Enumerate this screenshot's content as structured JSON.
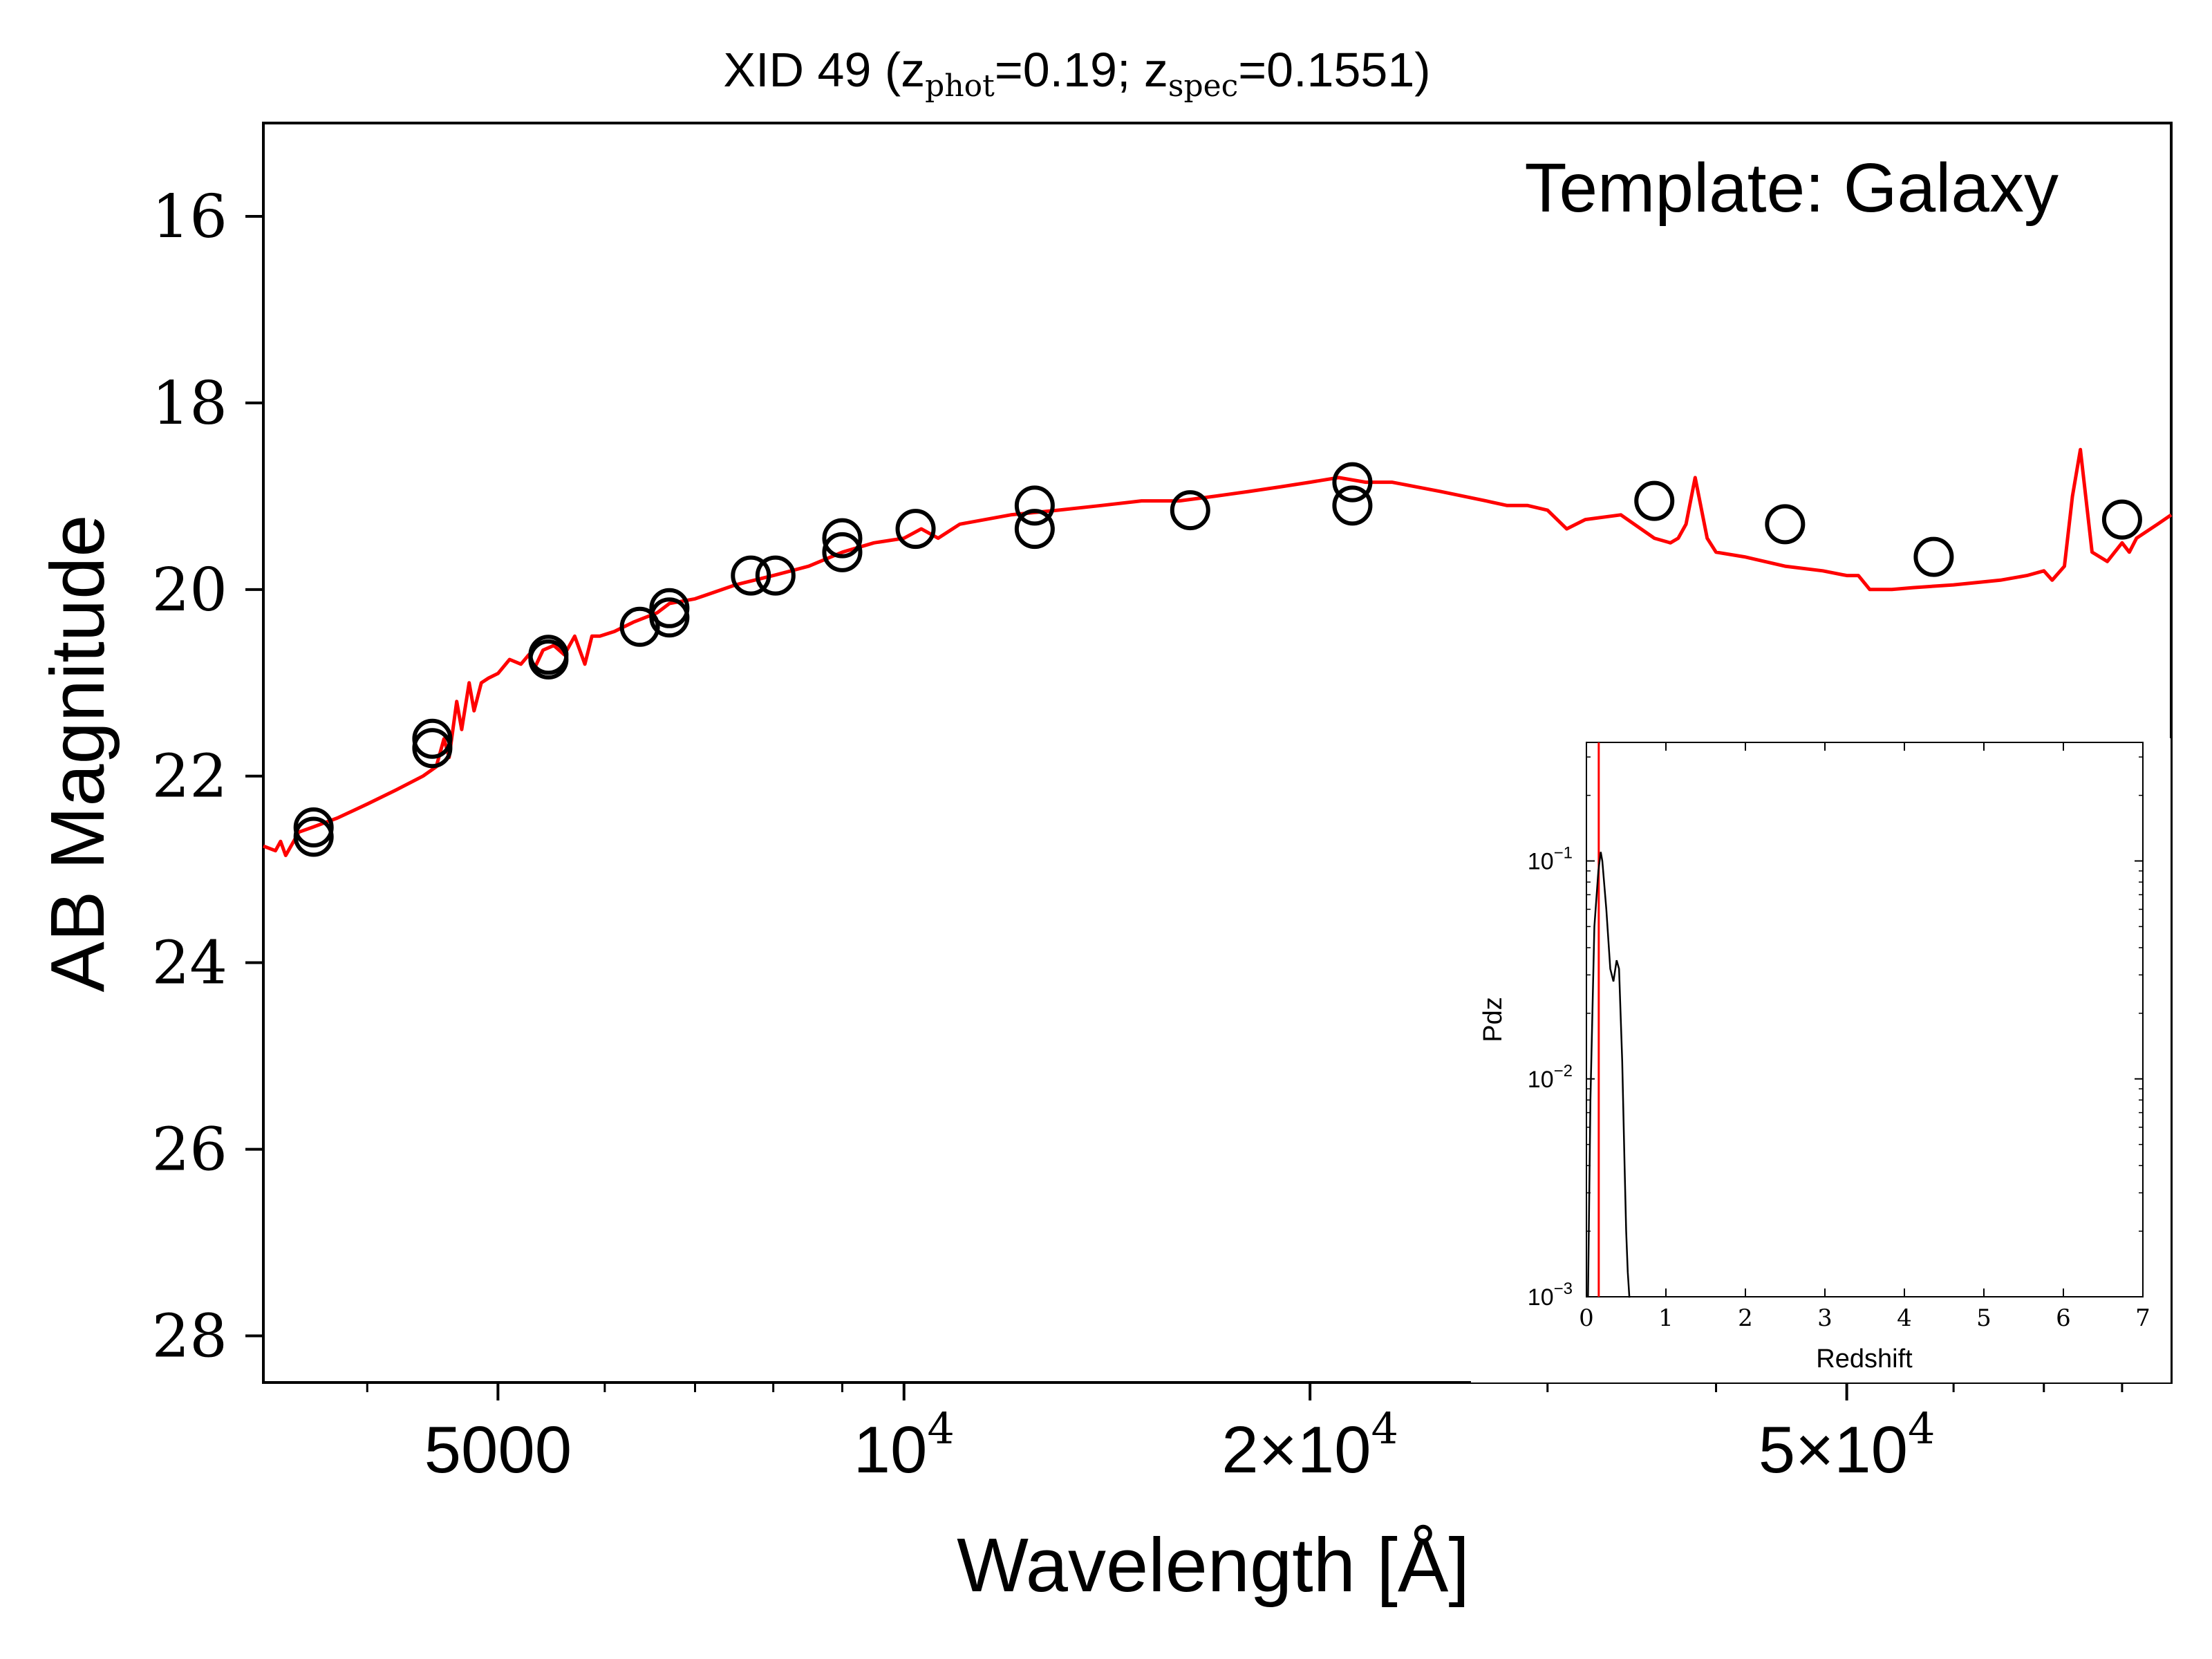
{
  "chart_data": [
    {
      "type": "scatter",
      "title_parts": {
        "pre": "XID 49 (z",
        "sub1": "phot",
        "mid": "=0.19; z",
        "sub2": "spec",
        "post": "=0.1551)"
      },
      "annotation": "Template: Galaxy",
      "xlabel": "Wavelength [Å]",
      "ylabel": "AB Magnitude",
      "xscale": "log",
      "yinverted": true,
      "xlim": [
        3350,
        87000
      ],
      "ylim": [
        28.5,
        15.0
      ],
      "yticks": [
        {
          "value": 16,
          "label": "16"
        },
        {
          "value": 18,
          "label": "18"
        },
        {
          "value": 20,
          "label": "20"
        },
        {
          "value": 22,
          "label": "22"
        },
        {
          "value": 24,
          "label": "24"
        },
        {
          "value": 26,
          "label": "26"
        },
        {
          "value": 28,
          "label": "28"
        }
      ],
      "xticks_major": [
        {
          "value": 5000,
          "label": "5000",
          "exp": ""
        },
        {
          "value": 10000,
          "label": "10",
          "exp": "4"
        },
        {
          "value": 20000,
          "label": "2×10",
          "exp": "4"
        },
        {
          "value": 50000,
          "label": "5×10",
          "exp": "4"
        }
      ],
      "xticks_minor": [
        4000,
        6000,
        7000,
        8000,
        9000,
        30000,
        40000,
        60000,
        70000,
        80000
      ],
      "series": [
        {
          "kind": "observed",
          "color": "#000000",
          "points": [
            {
              "x": 3650,
              "y": 22.55
            },
            {
              "x": 3650,
              "y": 22.65
            },
            {
              "x": 4470,
              "y": 21.6
            },
            {
              "x": 4470,
              "y": 21.7
            },
            {
              "x": 5450,
              "y": 20.7
            },
            {
              "x": 5450,
              "y": 20.75
            },
            {
              "x": 6370,
              "y": 20.4
            },
            {
              "x": 6700,
              "y": 20.2
            },
            {
              "x": 6700,
              "y": 20.3
            },
            {
              "x": 7700,
              "y": 19.85
            },
            {
              "x": 8030,
              "y": 19.85
            },
            {
              "x": 9000,
              "y": 19.45
            },
            {
              "x": 9000,
              "y": 19.6
            },
            {
              "x": 10200,
              "y": 19.35
            },
            {
              "x": 12500,
              "y": 19.1
            },
            {
              "x": 12500,
              "y": 19.35
            },
            {
              "x": 16300,
              "y": 19.15
            },
            {
              "x": 21500,
              "y": 18.85
            },
            {
              "x": 21500,
              "y": 19.1
            },
            {
              "x": 36000,
              "y": 19.05
            },
            {
              "x": 45000,
              "y": 19.3
            },
            {
              "x": 58000,
              "y": 19.65
            },
            {
              "x": 80000,
              "y": 19.25
            }
          ]
        },
        {
          "kind": "template",
          "color": "#ff0000",
          "x": [
            3350,
            3420,
            3450,
            3480,
            3560,
            3640,
            3800,
            4000,
            4200,
            4400,
            4500,
            4560,
            4600,
            4660,
            4700,
            4760,
            4800,
            4860,
            4920,
            5000,
            5100,
            5200,
            5270,
            5320,
            5400,
            5500,
            5600,
            5700,
            5800,
            5870,
            5950,
            6100,
            6300,
            6560,
            6700,
            7000,
            7500,
            8000,
            8500,
            9000,
            9500,
            10000,
            10300,
            10600,
            11000,
            12000,
            13000,
            14000,
            15000,
            16000,
            17000,
            18000,
            19000,
            20000,
            21000,
            22000,
            23000,
            24000,
            25000,
            26000,
            27000,
            28000,
            29000,
            30000,
            31000,
            32000,
            34000,
            36000,
            37000,
            37500,
            38000,
            38600,
            39400,
            40000,
            42000,
            45000,
            48000,
            50000,
            51000,
            52000,
            54000,
            56000,
            60000,
            65000,
            68000,
            70000,
            71000,
            72500,
            73500,
            74500,
            76000,
            78000,
            80000,
            81000,
            82000,
            85000,
            87000
          ],
          "y": [
            22.75,
            22.8,
            22.7,
            22.85,
            22.6,
            22.55,
            22.45,
            22.3,
            22.15,
            22.0,
            21.9,
            21.6,
            21.8,
            21.2,
            21.5,
            21.0,
            21.3,
            21.0,
            20.95,
            20.9,
            20.75,
            20.8,
            20.7,
            20.85,
            20.65,
            20.6,
            20.7,
            20.5,
            20.8,
            20.5,
            20.5,
            20.45,
            20.35,
            20.25,
            20.15,
            20.1,
            19.95,
            19.85,
            19.75,
            19.6,
            19.5,
            19.45,
            19.35,
            19.45,
            19.3,
            19.2,
            19.15,
            19.1,
            19.05,
            19.05,
            19.0,
            18.95,
            18.9,
            18.85,
            18.8,
            18.85,
            18.85,
            18.9,
            18.95,
            19.0,
            19.05,
            19.1,
            19.1,
            19.15,
            19.35,
            19.25,
            19.2,
            19.45,
            19.5,
            19.45,
            19.3,
            18.8,
            19.45,
            19.6,
            19.65,
            19.75,
            19.8,
            19.85,
            19.85,
            20.0,
            20.0,
            19.98,
            19.95,
            19.9,
            19.85,
            19.8,
            19.9,
            19.75,
            19.0,
            18.5,
            19.6,
            19.7,
            19.5,
            19.6,
            19.45,
            19.3,
            19.2
          ]
        }
      ]
    },
    {
      "type": "line",
      "role": "inset",
      "xlabel": "Redshift",
      "ylabel": "Pdz",
      "xscale": "linear",
      "yscale": "log",
      "xlim": [
        0,
        7
      ],
      "ylim": [
        0.001,
        0.35
      ],
      "xticks": [
        0,
        1,
        2,
        3,
        4,
        5,
        6,
        7
      ],
      "yticks": [
        {
          "value": 0.1,
          "label": "10",
          "exp": "−1"
        },
        {
          "value": 0.01,
          "label": "10",
          "exp": "−2"
        },
        {
          "value": 0.001,
          "label": "10",
          "exp": "−3"
        }
      ],
      "marker_line": {
        "x": 0.1551,
        "color": "#ff0000"
      },
      "series": [
        {
          "color": "#000000",
          "x": [
            0.02,
            0.05,
            0.1,
            0.15,
            0.18,
            0.2,
            0.25,
            0.3,
            0.34,
            0.38,
            0.41,
            0.45,
            0.48,
            0.5,
            0.52,
            0.54,
            0.55
          ],
          "y": [
            0.001,
            0.008,
            0.05,
            0.09,
            0.11,
            0.1,
            0.06,
            0.032,
            0.028,
            0.035,
            0.032,
            0.012,
            0.004,
            0.002,
            0.0013,
            0.001,
            0.0008
          ]
        }
      ]
    }
  ]
}
